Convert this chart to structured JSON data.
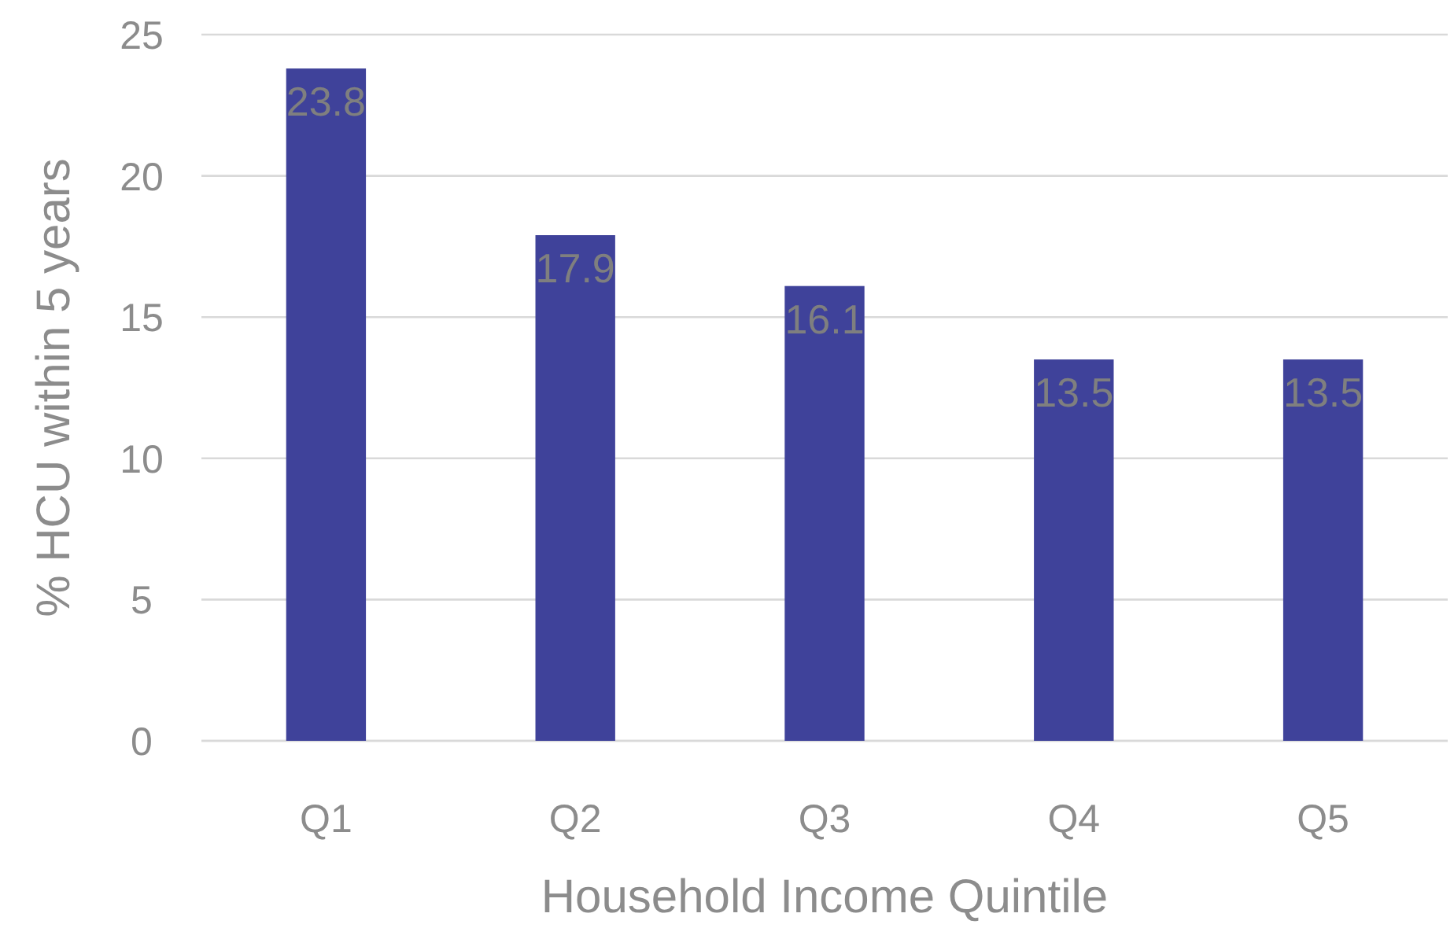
{
  "chart_data": {
    "type": "bar",
    "xlabel": "Household Income Quintile",
    "ylabel": "% HCU within 5 years",
    "categories": [
      "Q1",
      "Q2",
      "Q3",
      "Q4",
      "Q5"
    ],
    "values": [
      23.8,
      17.9,
      16.1,
      13.5,
      13.5
    ],
    "color": "#3f429a",
    "ylim": [
      0,
      25
    ],
    "yticks": [
      0,
      5,
      10,
      15,
      20,
      25
    ],
    "grid": "y",
    "data_labels": true
  }
}
